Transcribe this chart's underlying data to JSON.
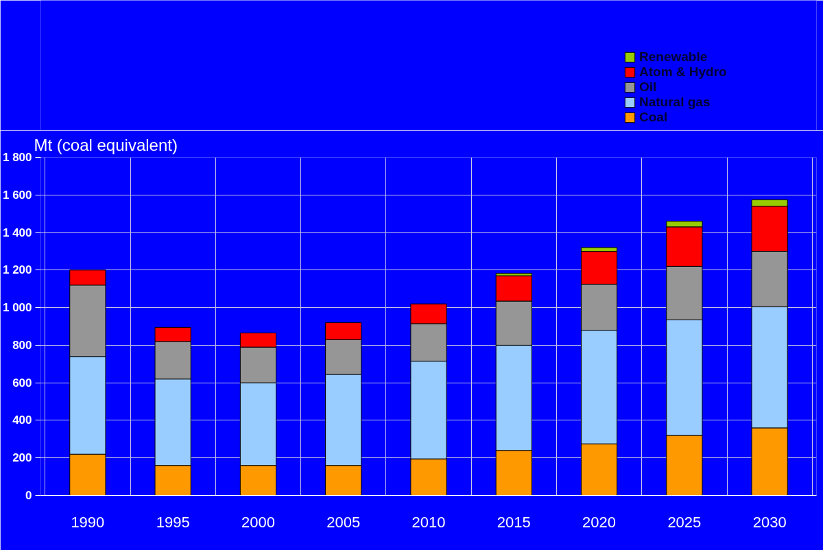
{
  "chart_data": {
    "type": "bar",
    "stacked": true,
    "ylabel": "Mt (coal equivalent)",
    "categories": [
      "1990",
      "1995",
      "2000",
      "2005",
      "2010",
      "2015",
      "2020",
      "2025",
      "2030"
    ],
    "series": [
      {
        "name": "Coal",
        "color": "#ff9900",
        "values": [
          220,
          160,
          160,
          160,
          195,
          240,
          275,
          320,
          360
        ]
      },
      {
        "name": "Natural gas",
        "color": "#99ccff",
        "values": [
          520,
          460,
          440,
          485,
          520,
          560,
          605,
          615,
          645
        ]
      },
      {
        "name": "Oil",
        "color": "#969696",
        "values": [
          380,
          200,
          190,
          185,
          200,
          235,
          245,
          285,
          295
        ]
      },
      {
        "name": "Atom & Hydro",
        "color": "#ff0000",
        "values": [
          80,
          75,
          75,
          90,
          105,
          135,
          175,
          210,
          240
        ]
      },
      {
        "name": "Renewable",
        "color": "#99cc00",
        "values": [
          null,
          null,
          null,
          null,
          null,
          12,
          20,
          30,
          35
        ]
      }
    ],
    "ylim": [
      0,
      1800
    ],
    "yticks": [
      0,
      200,
      400,
      600,
      800,
      {
        "value": 1000,
        "label": "1 000"
      },
      {
        "value": 1200,
        "label": "1 200"
      },
      {
        "value": 1400,
        "label": "1 400"
      },
      {
        "value": 1600,
        "label": "1 600"
      },
      {
        "value": 1800,
        "label": "1 800"
      }
    ],
    "grid": true,
    "legend": "top right"
  }
}
